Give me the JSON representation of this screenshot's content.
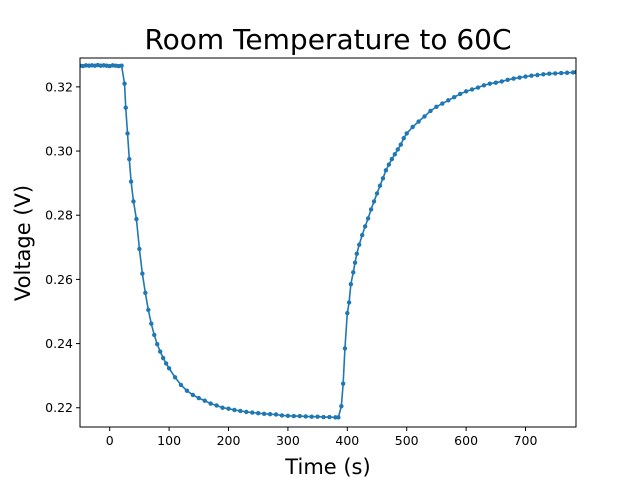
{
  "chart_data": {
    "type": "line",
    "title": "Room Temperature to 60C",
    "xlabel": "Time (s)",
    "ylabel": "Voltage (V)",
    "xlim": [
      -50,
      785
    ],
    "ylim": [
      0.214,
      0.329
    ],
    "xticks": [
      0,
      100,
      200,
      300,
      400,
      500,
      600,
      700
    ],
    "yticks": [
      0.22,
      0.24,
      0.26,
      0.28,
      0.3,
      0.32
    ],
    "ytick_labels": [
      "0.22",
      "0.24",
      "0.26",
      "0.28",
      "0.30",
      "0.32"
    ],
    "grid": false,
    "legend": "none",
    "series": [
      {
        "color": "#1f77b4",
        "marker": "circle",
        "x": [
          -50,
          -45,
          -40,
          -35,
          -30,
          -25,
          -20,
          -15,
          -10,
          -5,
          0,
          5,
          10,
          15,
          20,
          25,
          27,
          30,
          33,
          36,
          40,
          45,
          50,
          55,
          60,
          65,
          70,
          75,
          80,
          85,
          90,
          95,
          100,
          110,
          120,
          130,
          140,
          150,
          160,
          170,
          180,
          190,
          200,
          210,
          220,
          230,
          240,
          250,
          260,
          270,
          280,
          290,
          300,
          310,
          320,
          330,
          340,
          350,
          360,
          370,
          380,
          385,
          390,
          393,
          396,
          400,
          403,
          406,
          410,
          413,
          416,
          420,
          425,
          430,
          435,
          440,
          445,
          450,
          455,
          460,
          465,
          470,
          475,
          480,
          485,
          490,
          495,
          500,
          510,
          520,
          530,
          540,
          550,
          560,
          570,
          580,
          590,
          600,
          610,
          620,
          630,
          640,
          650,
          660,
          670,
          680,
          690,
          700,
          710,
          720,
          730,
          740,
          750,
          760,
          770,
          780,
          785
        ],
        "y": [
          0.3266,
          0.3265,
          0.3267,
          0.3266,
          0.3267,
          0.3266,
          0.3268,
          0.3266,
          0.3267,
          0.3266,
          0.3265,
          0.3267,
          0.3266,
          0.3265,
          0.3266,
          0.321,
          0.3135,
          0.3055,
          0.2975,
          0.2905,
          0.2843,
          0.2788,
          0.2695,
          0.2618,
          0.2558,
          0.2505,
          0.2462,
          0.2427,
          0.2398,
          0.2375,
          0.2355,
          0.2338,
          0.2323,
          0.2295,
          0.2271,
          0.2253,
          0.224,
          0.223,
          0.2222,
          0.2213,
          0.2207,
          0.22,
          0.2197,
          0.2193,
          0.219,
          0.2187,
          0.2185,
          0.2183,
          0.2181,
          0.218,
          0.2179,
          0.2176,
          0.2175,
          0.2174,
          0.2174,
          0.2173,
          0.2172,
          0.2172,
          0.2171,
          0.2171,
          0.217,
          0.217,
          0.2205,
          0.2275,
          0.2385,
          0.2495,
          0.2528,
          0.2585,
          0.2622,
          0.2652,
          0.268,
          0.2708,
          0.2738,
          0.2765,
          0.279,
          0.2818,
          0.2843,
          0.2868,
          0.2892,
          0.2915,
          0.294,
          0.2958,
          0.2975,
          0.299,
          0.3005,
          0.302,
          0.304,
          0.3055,
          0.3075,
          0.3092,
          0.3108,
          0.3125,
          0.3138,
          0.3148,
          0.3158,
          0.3168,
          0.3178,
          0.3186,
          0.3192,
          0.3198,
          0.3205,
          0.321,
          0.3213,
          0.3217,
          0.3222,
          0.3226,
          0.3229,
          0.3232,
          0.3235,
          0.3237,
          0.3239,
          0.3241,
          0.3242,
          0.3243,
          0.3244,
          0.3245,
          0.3246
        ]
      }
    ]
  }
}
